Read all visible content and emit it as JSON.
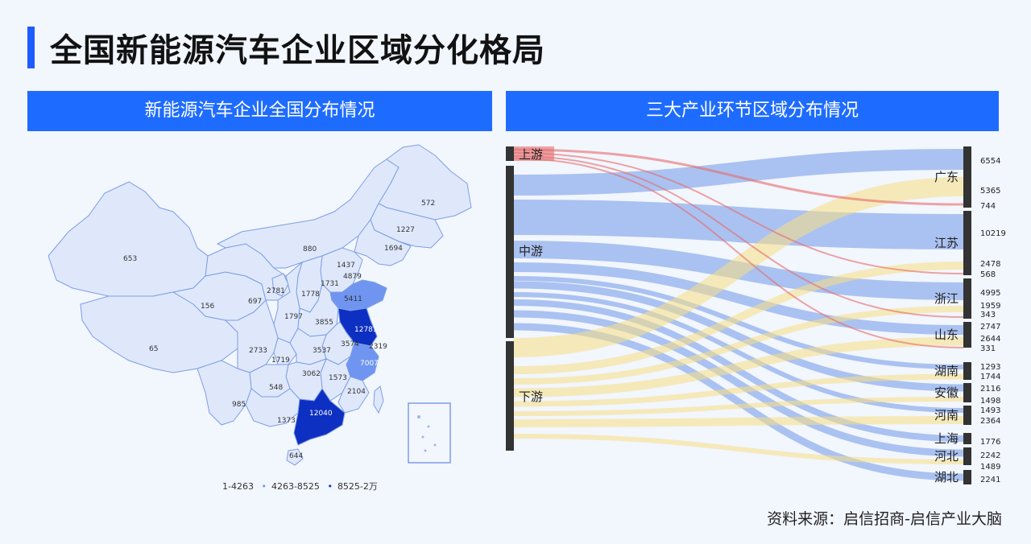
{
  "page": {
    "title": "全国新能源汽车企业区域分化格局",
    "left_header": "新能源汽车企业全国分布情况",
    "right_header": "三大产业环节区域分布情况",
    "source": "资料来源：启信招商-启信产业大脑",
    "accent": "#1f5cff",
    "header_color": "#1e6cff"
  },
  "legend": [
    "1-4263",
    "4263-8525",
    "8525-2万"
  ],
  "chart_data": [
    {
      "type": "choropleth",
      "legend_bins": [
        "1-4263",
        "4263-8525",
        "8525-2万"
      ],
      "bin_colors": [
        "#dfe8fb",
        "#6f95f0",
        "#0d2fc2"
      ],
      "values": [
        "653",
        "65",
        "156",
        "697",
        "880",
        "2781",
        "1778",
        "1731",
        "1437",
        "4879",
        "1227",
        "1694",
        "572",
        "5411",
        "12781",
        "7007",
        "2733",
        "1797",
        "3855",
        "3574",
        "2319",
        "1719",
        "3537",
        "3062",
        "1573",
        "2104",
        "985",
        "548",
        "1373",
        "12040",
        "644"
      ]
    },
    {
      "type": "sankey",
      "sources": [
        "上游",
        "中游",
        "下游"
      ],
      "targets": [
        "广东",
        "江苏",
        "浙江",
        "山东",
        "湖南",
        "安徽",
        "河南",
        "上海",
        "河北",
        "湖北"
      ],
      "colors": {
        "上游": "#e46b6b",
        "中游": "#6f97e8",
        "下游": "#f7df84"
      },
      "value_labels": [
        "6554",
        "5365",
        "744",
        "10219",
        "2478",
        "568",
        "4995",
        "1959",
        "343",
        "2747",
        "2644",
        "331",
        "1293",
        "1744",
        "2116",
        "1498",
        "1493",
        "2364",
        "1776",
        "2242",
        "1489",
        "2241"
      ]
    }
  ]
}
